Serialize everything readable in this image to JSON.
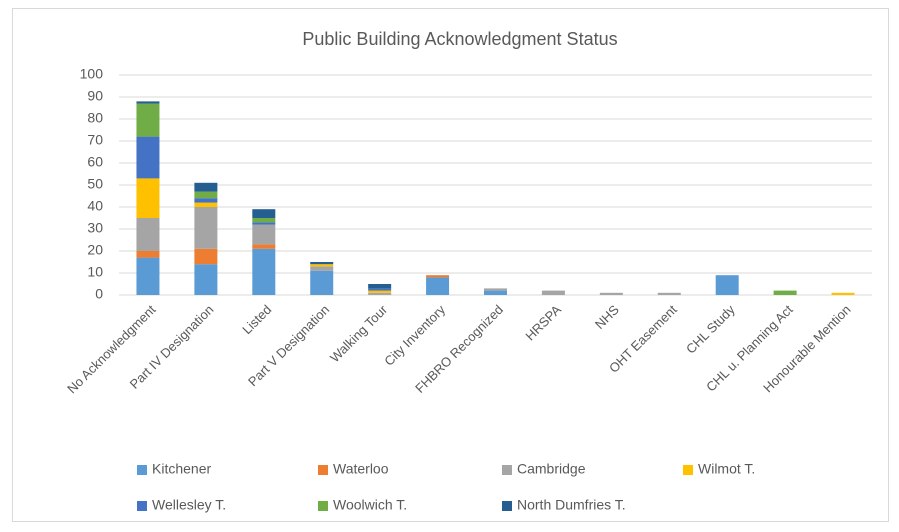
{
  "chart_data": {
    "type": "stacked_bar",
    "title": "Public Building Acknowledgment Status",
    "categories": [
      "No Acknowledgment",
      "Part IV Designation",
      "Listed",
      "Part V Designation",
      "Walking Tour",
      "City Inventory",
      "FHBRO Recognized",
      "HRSPA",
      "NHS",
      "OHT Easement",
      "CHL Study",
      "CHL u. Planning Act",
      "Honourable Mention"
    ],
    "series": [
      {
        "name": "Kitchener",
        "color": "#5b9bd5",
        "values": [
          17,
          14,
          21,
          11,
          0,
          8,
          2,
          0,
          0,
          0,
          9,
          0,
          0
        ]
      },
      {
        "name": "Waterloo",
        "color": "#ed7d31",
        "values": [
          3,
          7,
          2,
          0,
          0,
          1,
          0,
          0,
          0,
          0,
          0,
          0,
          0
        ]
      },
      {
        "name": "Cambridge",
        "color": "#a5a5a5",
        "values": [
          15,
          19,
          9,
          2,
          1,
          0,
          1,
          2,
          1,
          1,
          0,
          0,
          0
        ]
      },
      {
        "name": "Wilmot T.",
        "color": "#ffc000",
        "values": [
          18,
          2,
          0,
          1,
          1,
          0,
          0,
          0,
          0,
          0,
          0,
          0,
          1
        ]
      },
      {
        "name": "Wellesley T.",
        "color": "#4472c4",
        "values": [
          19,
          2,
          1,
          0,
          1,
          0,
          0,
          0,
          0,
          0,
          0,
          0,
          0
        ]
      },
      {
        "name": "Woolwich T.",
        "color": "#70ad47",
        "values": [
          15,
          3,
          2,
          0,
          0,
          0,
          0,
          0,
          0,
          0,
          0,
          2,
          0
        ]
      },
      {
        "name": "North Dumfries T.",
        "color": "#255e91",
        "values": [
          1,
          4,
          4,
          1,
          2,
          0,
          0,
          0,
          0,
          0,
          0,
          0,
          0
        ]
      }
    ],
    "ylim": [
      0,
      100
    ],
    "yticks": [
      0,
      10,
      20,
      30,
      40,
      50,
      60,
      70,
      80,
      90,
      100
    ],
    "grid": true,
    "legend": "bottom"
  }
}
